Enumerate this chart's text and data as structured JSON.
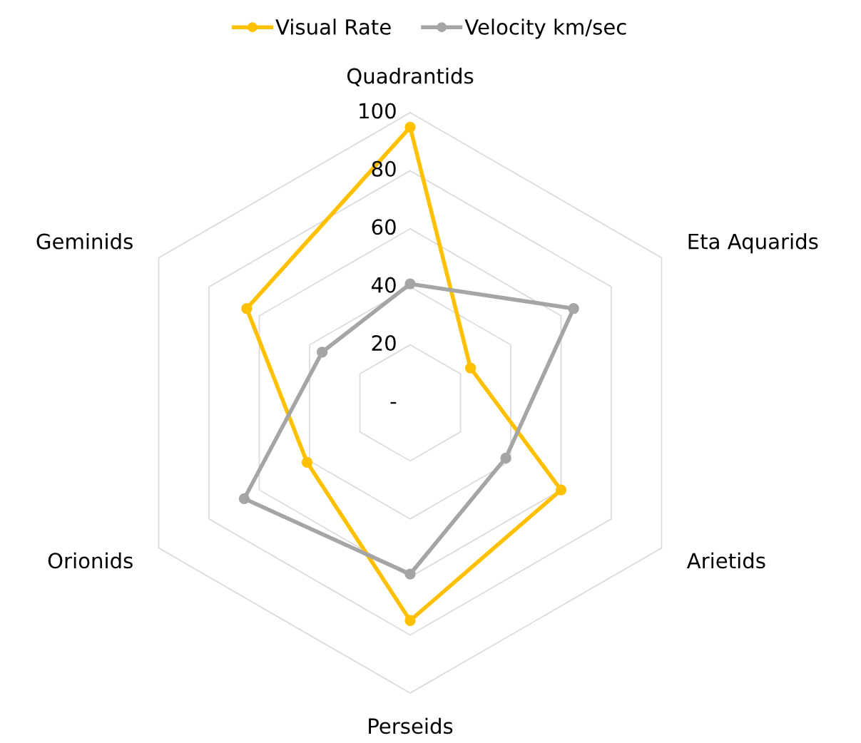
{
  "chart_data": {
    "type": "radar",
    "categories": [
      "Quadrantids",
      "Eta Aquarids",
      "Arietids",
      "Perseids",
      "Orionids",
      "Geminids"
    ],
    "series": [
      {
        "name": "Visual Rate",
        "color": "#ffc000",
        "values": [
          95,
          24,
          60,
          75,
          41,
          65
        ]
      },
      {
        "name": "Velocity km/sec",
        "color": "#a5a5a5",
        "values": [
          41,
          65,
          38,
          59,
          66,
          35
        ]
      }
    ],
    "ylim": [
      0,
      100
    ],
    "yticks": [
      {
        "value": 0,
        "label": "-"
      },
      20,
      40,
      60,
      80,
      100
    ],
    "grid": true,
    "legend": "top",
    "marker": "circle",
    "line_style": "solid"
  }
}
